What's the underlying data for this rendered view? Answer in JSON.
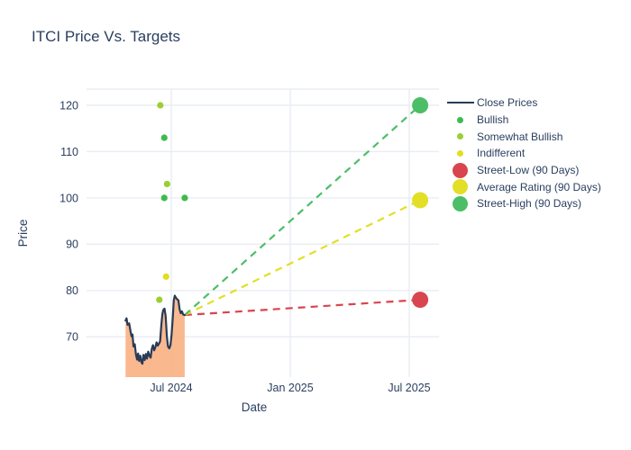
{
  "page_title": "ITCI Price Vs. Targets",
  "colors": {
    "text": "#2a3f5f",
    "grid": "#e9edf4",
    "close_line": "#283b57",
    "close_fill": "#f9b385",
    "bullish": "#3dbb4f",
    "somewhat_bullish": "#9bcf32",
    "indifferent": "#e2de20",
    "street_low": "#d8454f",
    "average_rating": "#e2df26",
    "street_high": "#4cbe68"
  },
  "legend": {
    "position": "right",
    "items": [
      {
        "id": "close-prices",
        "label": "Close Prices",
        "marker": "line",
        "color": "#283b57"
      },
      {
        "id": "bullish",
        "label": "Bullish",
        "marker": "dot-small",
        "color": "#3dbb4f"
      },
      {
        "id": "somewhat-bullish",
        "label": "Somewhat Bullish",
        "marker": "dot-small",
        "color": "#9bcf32"
      },
      {
        "id": "indifferent",
        "label": "Indifferent",
        "marker": "dot-small",
        "color": "#e2de20"
      },
      {
        "id": "street-low",
        "label": "Street-Low (90 Days)",
        "marker": "dot-large",
        "color": "#d8454f"
      },
      {
        "id": "average-rating",
        "label": "Average Rating (90 Days)",
        "marker": "dot-large",
        "color": "#e2df26"
      },
      {
        "id": "street-high",
        "label": "Street-High (90 Days)",
        "marker": "dot-large",
        "color": "#4cbe68"
      }
    ]
  },
  "chart_data": {
    "type": "line",
    "title": "ITCI Price Vs. Targets",
    "xlabel": "Date",
    "ylabel": "Price",
    "grid": true,
    "x_axis": {
      "tick_labels": [
        "Jul 2024",
        "Jan 2025",
        "Jul 2025"
      ],
      "tick_months": [
        0,
        6,
        12
      ],
      "xlim_months": [
        -4.27,
        13.5
      ],
      "note": "x is measured in months relative to Jul 2024"
    },
    "y_axis": {
      "ticks": [
        70,
        80,
        90,
        100,
        110,
        120
      ],
      "ylim": [
        61.3,
        123.5
      ]
    },
    "close_prices": {
      "name": "Close Prices",
      "x": [
        -2.3,
        -2.25,
        -2.2,
        -2.12,
        -2.05,
        -2.0,
        -1.95,
        -1.9,
        -1.84,
        -1.78,
        -1.72,
        -1.67,
        -1.62,
        -1.56,
        -1.5,
        -1.45,
        -1.4,
        -1.34,
        -1.28,
        -1.22,
        -1.16,
        -1.1,
        -1.04,
        -0.98,
        -0.92,
        -0.86,
        -0.8,
        -0.74,
        -0.68,
        -0.62,
        -0.56,
        -0.5,
        -0.45,
        -0.4,
        -0.34,
        -0.28,
        -0.22,
        -0.16,
        -0.1,
        -0.04,
        0.02,
        0.08,
        0.13,
        0.18,
        0.24,
        0.3,
        0.36,
        0.42,
        0.48,
        0.54,
        0.6,
        0.68
      ],
      "y": [
        73.5,
        74.0,
        72.6,
        72.9,
        71.2,
        70.1,
        70.5,
        67.9,
        68.4,
        66.2,
        65.1,
        66.4,
        64.8,
        65.9,
        64.5,
        64.2,
        66.1,
        65.0,
        66.3,
        65.3,
        66.8,
        65.9,
        65.5,
        67.4,
        68.2,
        67.1,
        67.8,
        68.8,
        68.1,
        68.5,
        69.0,
        72.6,
        74.9,
        75.8,
        76.1,
        74.4,
        70.1,
        67.9,
        67.5,
        68.2,
        70.6,
        74.2,
        77.9,
        78.9,
        78.4,
        78.1,
        77.9,
        76.0,
        75.1,
        75.5,
        74.8,
        74.7
      ]
    },
    "ratings": [
      {
        "name": "Bullish",
        "color": "#3dbb4f",
        "points": [
          {
            "x": -0.35,
            "y": 113
          },
          {
            "x": -0.35,
            "y": 100
          },
          {
            "x": 0.68,
            "y": 100
          }
        ]
      },
      {
        "name": "Somewhat Bullish",
        "color": "#9bcf32",
        "points": [
          {
            "x": -0.55,
            "y": 120
          },
          {
            "x": -0.21,
            "y": 103
          },
          {
            "x": -0.6,
            "y": 78
          }
        ]
      },
      {
        "name": "Indifferent",
        "color": "#e2de20",
        "points": [
          {
            "x": -0.26,
            "y": 83
          }
        ]
      }
    ],
    "targets": {
      "origin": {
        "x": 0.68,
        "y": 74.7
      },
      "x_months": 12.55,
      "items": [
        {
          "name": "Street-Low (90 Days)",
          "value": 78,
          "color": "#d8454f"
        },
        {
          "name": "Average Rating (90 Days)",
          "value": 99.5,
          "color": "#e2df26"
        },
        {
          "name": "Street-High (90 Days)",
          "value": 120,
          "color": "#4cbe68"
        }
      ]
    }
  }
}
